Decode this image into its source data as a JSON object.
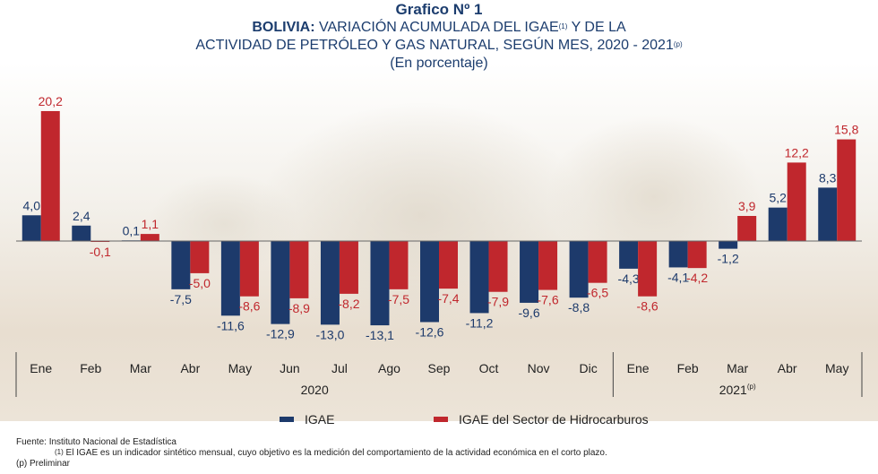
{
  "title": {
    "line0": "Grafico Nº 1",
    "line1_bold": "BOLIVIA:",
    "line1_rest": " VARIACIÓN ACUMULADA DEL IGAE",
    "line1_sup": "(1)",
    "line1_end": " Y DE LA",
    "line2": "ACTIVIDAD DE PETRÓLEO Y GAS NATURAL, SEGÚN MES, 2020 - 2021",
    "line2_sup": "(p)",
    "line3": "(En porcentaje)"
  },
  "chart_data": {
    "type": "bar",
    "categories": [
      "Ene",
      "Feb",
      "Mar",
      "Abr",
      "May",
      "Jun",
      "Jul",
      "Ago",
      "Sep",
      "Oct",
      "Nov",
      "Dic",
      "Ene",
      "Feb",
      "Mar",
      "Abr",
      "May"
    ],
    "groups": [
      {
        "label": "2020",
        "sup": "",
        "from": 0,
        "to": 11
      },
      {
        "label": "2021",
        "sup": "(p)",
        "from": 12,
        "to": 16
      }
    ],
    "series": [
      {
        "name": "IGAE",
        "color": "#1d3a6b",
        "values": [
          4.0,
          2.4,
          0.1,
          -7.5,
          -11.6,
          -12.9,
          -13.0,
          -13.1,
          -12.6,
          -11.2,
          -9.6,
          -8.8,
          -4.3,
          -4.1,
          -1.2,
          5.2,
          8.3
        ],
        "labels": [
          "4,0",
          "2,4",
          "0,1",
          "-7,5",
          "-11,6",
          "-12,9",
          "-13,0",
          "-13,1",
          "-12,6",
          "-11,2",
          "-9,6",
          "-8,8",
          "-4,3",
          "-4,1",
          "-1,2",
          "5,2",
          "8,3"
        ]
      },
      {
        "name": "IGAE del Sector de Hidrocarburos",
        "color": "#c0272d",
        "values": [
          20.2,
          -0.1,
          1.1,
          -5.0,
          -8.6,
          -8.9,
          -8.2,
          -7.5,
          -7.4,
          -7.9,
          -7.6,
          -6.5,
          -8.6,
          -4.2,
          3.9,
          12.2,
          15.8
        ],
        "labels": [
          "20,2",
          "-0,1",
          "1,1",
          "-5,0",
          "-8,6",
          "-8,9",
          "-8,2",
          "-7,5",
          "-7,4",
          "-7,9",
          "-7,6",
          "-6,5",
          "-8,6",
          "-4,2",
          "3,9",
          "12,2",
          "15,8"
        ]
      }
    ],
    "ylim": [
      -14,
      21
    ],
    "xlabel": "",
    "ylabel": "",
    "label_colors": {
      "IGAE": "#1d3a6b",
      "IGAE del Sector de Hidrocarburos": "#c0272d"
    }
  },
  "legend": {
    "igae": "IGAE",
    "hidro": "IGAE del Sector de Hidrocarburos"
  },
  "footer": {
    "source": "Fuente: Instituto Nacional de Estadística",
    "note1_sup": "(1)",
    "note1": " El IGAE es un indicador sintético mensual, cuyo objetivo es la medición del comportamiento de la actividad económica en el corto plazo.",
    "note2": "(p) Preliminar"
  }
}
